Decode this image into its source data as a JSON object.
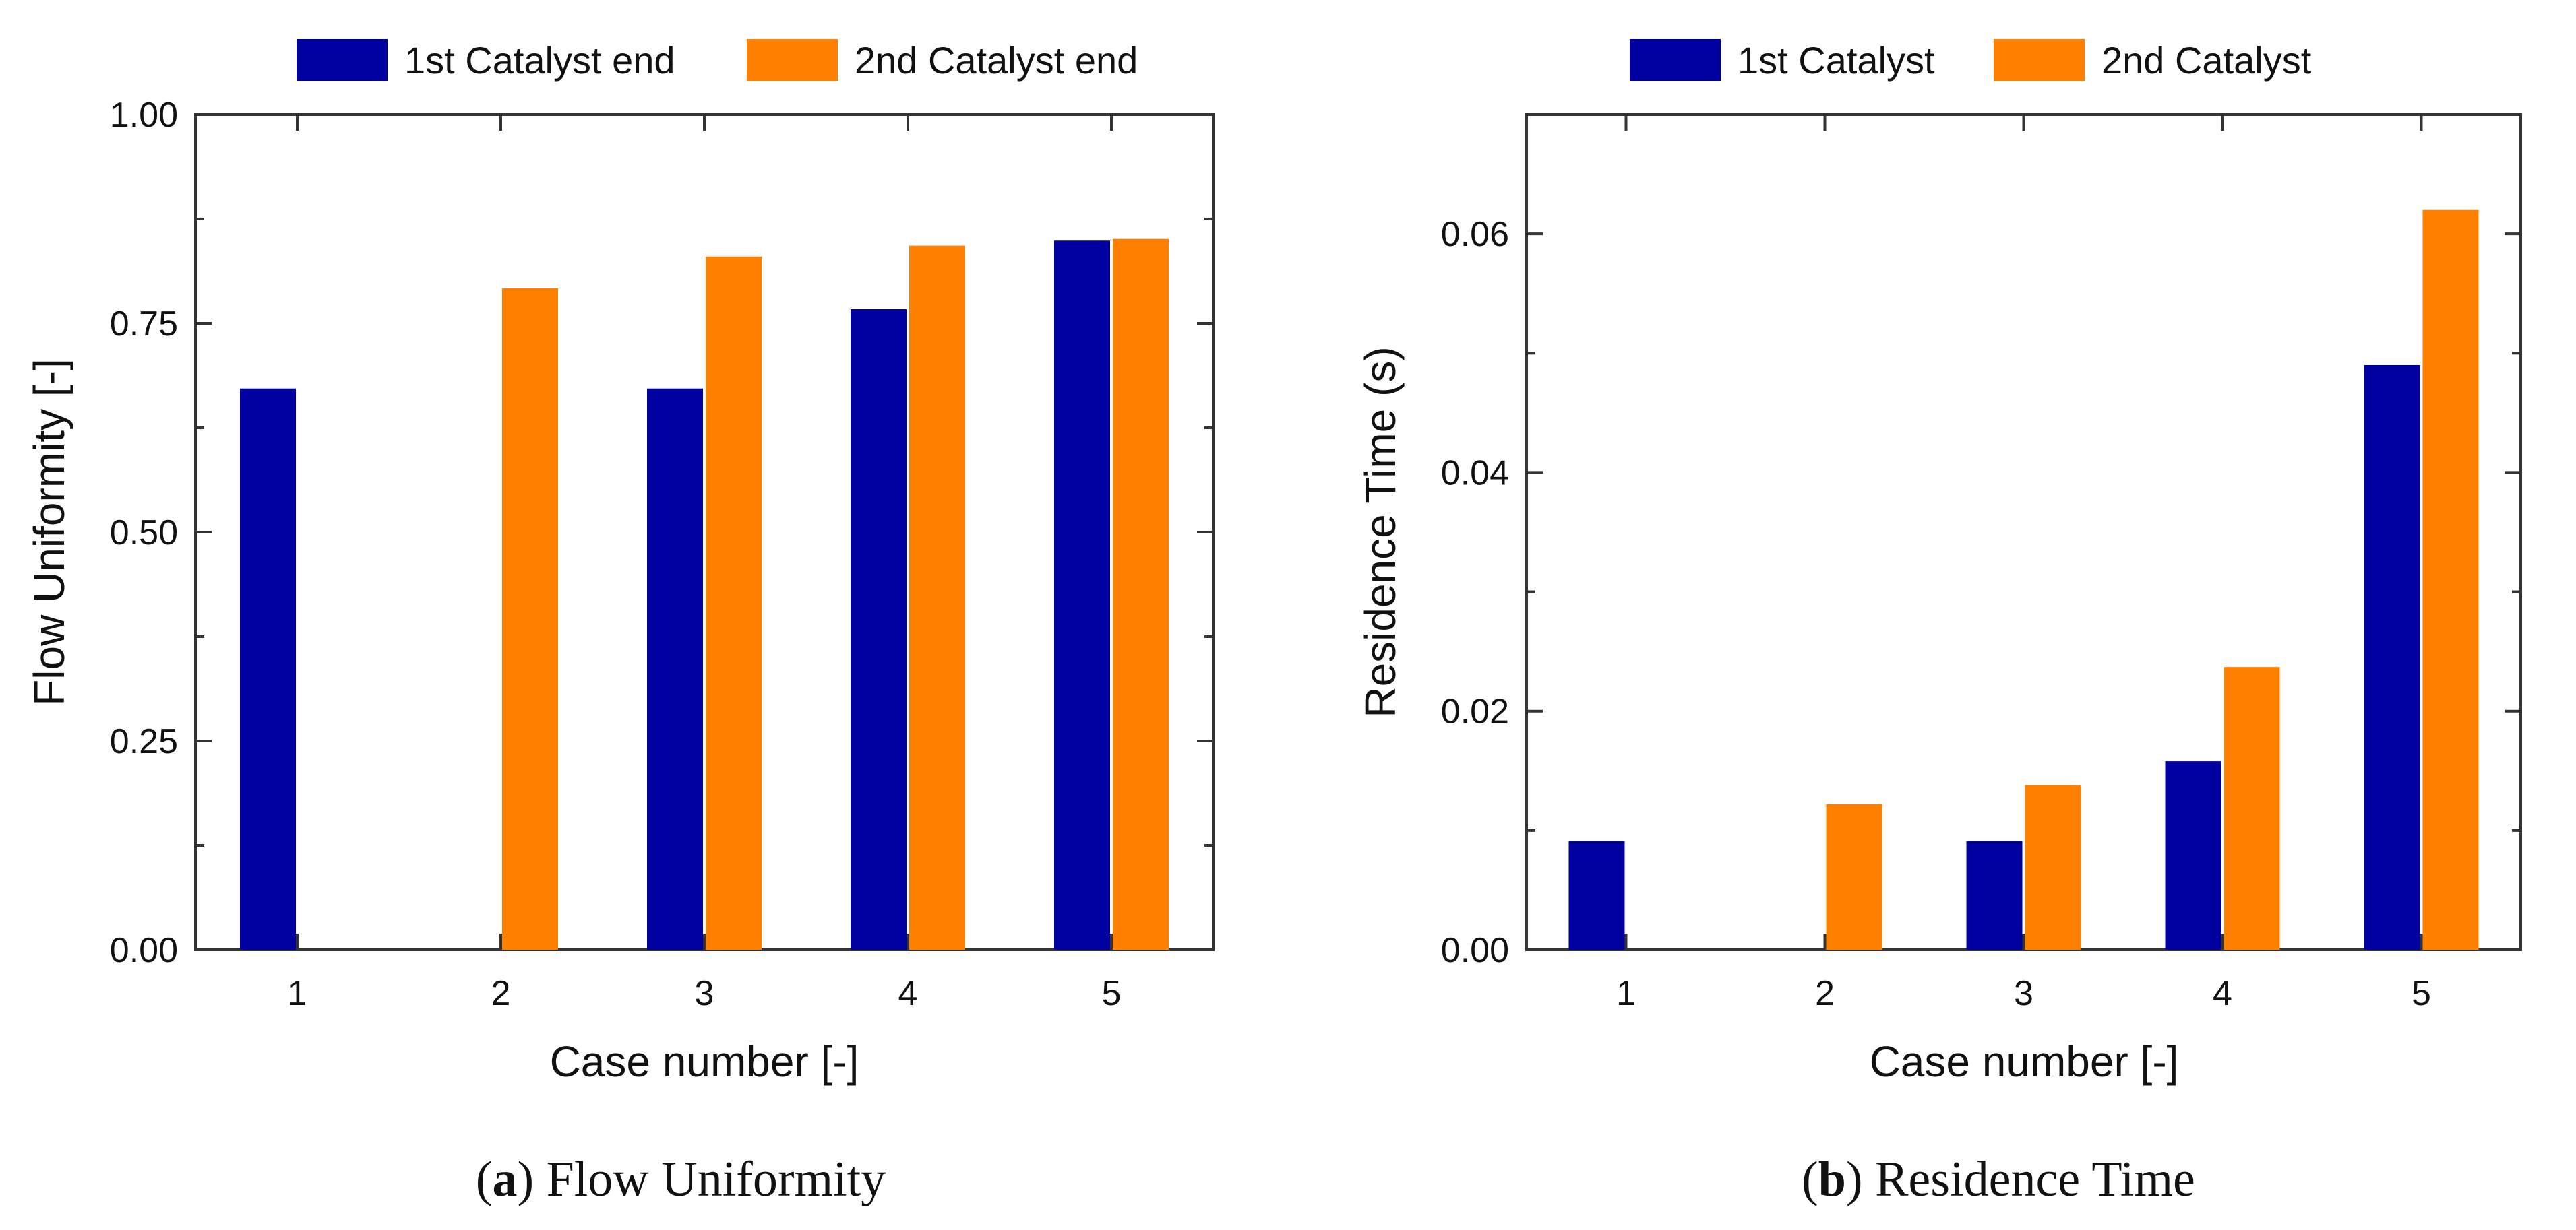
{
  "colors": {
    "series1": "#0000A0",
    "series2": "#FF8000",
    "axis": "#333333"
  },
  "chart_data": [
    {
      "type": "bar",
      "caption_letter": "a",
      "caption_text": " Flow Uniformity",
      "categories": [
        "1",
        "2",
        "3",
        "4",
        "5"
      ],
      "series": [
        {
          "name": "1st Catalyst end",
          "values": [
            0.672,
            0,
            0.672,
            0.767,
            0.849
          ]
        },
        {
          "name": "2nd Catalyst end",
          "values": [
            0,
            0.792,
            0.83,
            0.843,
            0.851
          ]
        }
      ],
      "ylim": [
        0,
        1.0
      ],
      "yticks": [
        0,
        0.25,
        0.5,
        0.75,
        1.0
      ],
      "ytick_labels": [
        "0.00",
        "0.25",
        "0.50",
        "0.75",
        "1.00"
      ],
      "xlabel": "Case number [-]",
      "ylabel": "Flow Uniformity [-]",
      "legend": "top"
    },
    {
      "type": "bar",
      "caption_letter": "b",
      "caption_text": " Residence Time",
      "categories": [
        "1",
        "2",
        "3",
        "4",
        "5"
      ],
      "series": [
        {
          "name": "1st Catalyst",
          "values": [
            0.0091,
            0,
            0.0091,
            0.0158,
            0.049
          ]
        },
        {
          "name": "2nd Catalyst",
          "values": [
            0,
            0.0122,
            0.0138,
            0.0237,
            0.062
          ]
        }
      ],
      "ylim": [
        0,
        0.07
      ],
      "yticks": [
        0,
        0.02,
        0.04,
        0.06
      ],
      "ytick_labels": [
        "0.00",
        "0.02",
        "0.04",
        "0.06"
      ],
      "xlabel": "Case number [-]",
      "ylabel": "Residence Time (s)",
      "legend": "top"
    }
  ]
}
